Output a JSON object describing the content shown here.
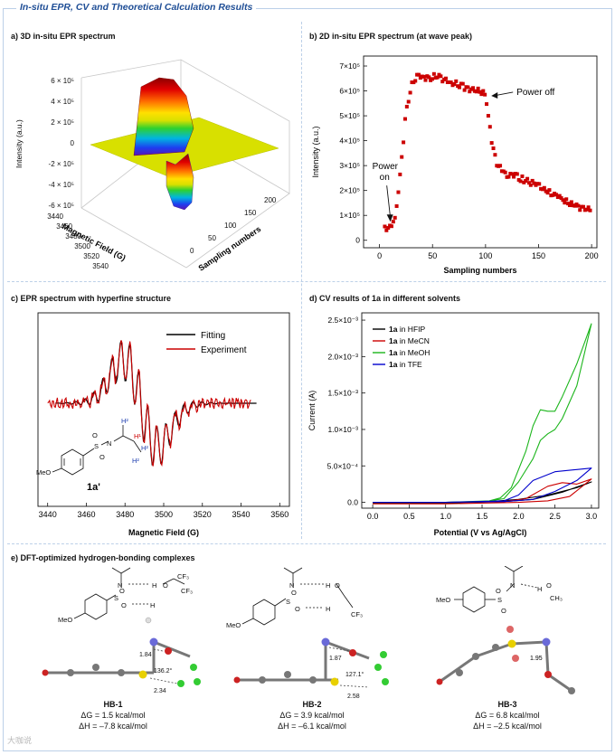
{
  "main_title": "In-situ EPR, CV and Theoretical Calculation Results",
  "panels": {
    "a": "a) 3D in-situ EPR spectrum",
    "b": "b) 2D in-situ EPR spectrum (at wave peak)",
    "c": "c) EPR spectrum with hyperfine structure",
    "d": "d) CV results of 1a in different solvents",
    "e": "e) DFT-optimized hydrogen-bonding complexes"
  },
  "colors": {
    "accent": "#1f4e96",
    "border": "#bcd0e8",
    "red": "#cc0000",
    "green": "#1bb51b",
    "blue": "#0000cc"
  },
  "chart_data": [
    {
      "id": "a",
      "type": "surface3d",
      "title": "3D in-situ EPR spectrum",
      "zlabel": "Intensity (a.u.)",
      "xlabel": "Magnetic Field (G)",
      "ylabel": "Sampling numbers",
      "z_ticks": [
        "6 × 10⁵",
        "4 × 10⁵",
        "2 × 10⁵",
        "0",
        "-2 × 10⁵",
        "-4 × 10⁵",
        "-6 × 10⁵"
      ],
      "field_ticks": [
        "3440",
        "3460",
        "3480",
        "3500",
        "3520",
        "3540"
      ],
      "sample_ticks": [
        "0",
        "50",
        "100",
        "150",
        "200"
      ]
    },
    {
      "id": "b",
      "type": "scatter",
      "title": "2D in-situ EPR spectrum (at wave peak)",
      "xlabel": "Sampling numbers",
      "ylabel": "Intensity (a.u.)",
      "xlim": [
        -15,
        205
      ],
      "ylim": [
        -30000,
        740000
      ],
      "x_ticks": [
        0,
        50,
        100,
        150,
        200
      ],
      "y_ticks": [
        {
          "v": 0,
          "label": "0"
        },
        {
          "v": 100000,
          "label": "1×10⁵"
        },
        {
          "v": 200000,
          "label": "2×10⁵"
        },
        {
          "v": 300000,
          "label": "3×10⁵"
        },
        {
          "v": 400000,
          "label": "4×10⁵"
        },
        {
          "v": 500000,
          "label": "5×10⁵"
        },
        {
          "v": 600000,
          "label": "6×10⁵"
        },
        {
          "v": 700000,
          "label": "7×10⁵"
        }
      ],
      "key_points": [
        [
          5,
          50000
        ],
        [
          10,
          52000
        ],
        [
          15,
          90000
        ],
        [
          20,
          280000
        ],
        [
          25,
          520000
        ],
        [
          30,
          620000
        ],
        [
          35,
          655000
        ],
        [
          45,
          650000
        ],
        [
          55,
          660000
        ],
        [
          65,
          635000
        ],
        [
          75,
          625000
        ],
        [
          85,
          605000
        ],
        [
          95,
          600000
        ],
        [
          100,
          580000
        ],
        [
          105,
          420000
        ],
        [
          110,
          310000
        ],
        [
          115,
          290000
        ],
        [
          120,
          260000
        ],
        [
          130,
          255000
        ],
        [
          140,
          235000
        ],
        [
          150,
          220000
        ],
        [
          160,
          195000
        ],
        [
          170,
          170000
        ],
        [
          180,
          150000
        ],
        [
          190,
          130000
        ],
        [
          200,
          120000
        ]
      ],
      "annotations": [
        {
          "text": "Power off",
          "x": 102,
          "y": 580000
        },
        {
          "line1": "Power",
          "line2": "on",
          "x": 12,
          "y": 60000
        }
      ]
    },
    {
      "id": "c",
      "type": "line",
      "title": "EPR spectrum with hyperfine structure",
      "xlabel": "Magnetic Field (G)",
      "xlim": [
        3435,
        3565
      ],
      "x_ticks": [
        3440,
        3460,
        3480,
        3500,
        3520,
        3540,
        3560
      ],
      "series": [
        {
          "name": "Fitting",
          "color": "#000000"
        },
        {
          "name": "Experiment",
          "color": "#cc0000"
        }
      ],
      "molecule_label": "1a'",
      "molecule_labels": [
        "MeO",
        "S",
        "O",
        "O",
        "N",
        "H¹",
        "H²",
        "H²",
        "H²"
      ]
    },
    {
      "id": "d",
      "type": "line",
      "title": "CV results of 1a in different solvents",
      "xlabel": "Potential (V vs Ag/AgCl)",
      "ylabel": "Current (A)",
      "xlim": [
        -0.15,
        3.1
      ],
      "ylim": [
        -8e-05,
        0.0026
      ],
      "x_ticks": [
        0.0,
        0.5,
        1.0,
        1.5,
        2.0,
        2.5,
        3.0
      ],
      "y_ticks": [
        {
          "v": 0,
          "label": "0.0"
        },
        {
          "v": 0.0005,
          "label": "5.0×10⁻⁴"
        },
        {
          "v": 0.001,
          "label": "1.0×10⁻³"
        },
        {
          "v": 0.0015,
          "label": "1.5×10⁻³"
        },
        {
          "v": 0.002,
          "label": "2.0×10⁻³"
        },
        {
          "v": 0.0025,
          "label": "2.5×10⁻³"
        }
      ],
      "series": [
        {
          "name_bold": "1a",
          "name_rest": " in HFIP",
          "color": "#000000",
          "forward": [
            [
              0,
              0
            ],
            [
              1.0,
              0
            ],
            [
              1.6,
              1e-05
            ],
            [
              2.0,
              4e-05
            ],
            [
              2.4,
              0.0001
            ],
            [
              2.8,
              0.0002
            ],
            [
              3.0,
              0.00028
            ]
          ],
          "reverse": [
            [
              3.0,
              0.00028
            ],
            [
              2.6,
              0.00014
            ],
            [
              2.2,
              4e-05
            ],
            [
              1.8,
              1e-05
            ],
            [
              1.0,
              -1e-05
            ],
            [
              0,
              -1e-05
            ]
          ]
        },
        {
          "name_bold": "1a",
          "name_rest": " in MeCN",
          "color": "#cc0000",
          "forward": [
            [
              0,
              0
            ],
            [
              1.0,
              0
            ],
            [
              1.8,
              1e-05
            ],
            [
              2.1,
              5e-05
            ],
            [
              2.4,
              0.00022
            ],
            [
              2.6,
              0.00027
            ],
            [
              2.8,
              0.00025
            ],
            [
              3.0,
              0.00032
            ]
          ],
          "reverse": [
            [
              3.0,
              0.00032
            ],
            [
              2.7,
              8e-05
            ],
            [
              2.4,
              2e-05
            ],
            [
              2.0,
              0
            ],
            [
              1.0,
              -2e-05
            ],
            [
              0,
              -2e-05
            ]
          ]
        },
        {
          "name_bold": "1a",
          "name_rest": " in MeOH",
          "color": "#1bb51b",
          "forward": [
            [
              0,
              0
            ],
            [
              1.0,
              0
            ],
            [
              1.6,
              2e-05
            ],
            [
              1.75,
              6e-05
            ],
            [
              1.9,
              0.0002
            ],
            [
              2.1,
              0.0007
            ],
            [
              2.2,
              0.00105
            ],
            [
              2.3,
              0.00127
            ],
            [
              2.4,
              0.00125
            ],
            [
              2.5,
              0.00125
            ],
            [
              2.6,
              0.00145
            ],
            [
              2.8,
              0.0019
            ],
            [
              3.0,
              0.00245
            ]
          ],
          "reverse": [
            [
              3.0,
              0.00245
            ],
            [
              2.8,
              0.0016
            ],
            [
              2.6,
              0.00115
            ],
            [
              2.5,
              0.001
            ],
            [
              2.4,
              0.00094
            ],
            [
              2.3,
              0.00085
            ],
            [
              2.2,
              0.0006
            ],
            [
              2.0,
              0.00028
            ],
            [
              1.8,
              5e-05
            ],
            [
              1.6,
              2e-05
            ],
            [
              1.0,
              0
            ],
            [
              0,
              0
            ]
          ]
        },
        {
          "name_bold": "1a",
          "name_rest": " in TFE",
          "color": "#0000cc",
          "forward": [
            [
              0,
              0
            ],
            [
              1.0,
              0
            ],
            [
              1.8,
              2e-05
            ],
            [
              2.0,
              0.0001
            ],
            [
              2.2,
              0.0003
            ],
            [
              2.5,
              0.00042
            ],
            [
              2.8,
              0.00045
            ],
            [
              3.0,
              0.00047
            ]
          ],
          "reverse": [
            [
              3.0,
              0.00047
            ],
            [
              2.8,
              0.0003
            ],
            [
              2.5,
              0.00015
            ],
            [
              2.2,
              4e-05
            ],
            [
              1.8,
              1e-05
            ],
            [
              1.0,
              0
            ],
            [
              0,
              0
            ]
          ]
        }
      ]
    }
  ],
  "complexes": [
    {
      "id": "HB-1",
      "dG": "ΔG = 1.5 kcal/mol",
      "dH": "ΔH = –7.8 kcal/mol",
      "dists": [
        "1.84",
        "136.2°",
        "2.34"
      ],
      "atoms": [
        "N",
        "H",
        "O",
        "CF₃",
        "CF₃",
        "S",
        "O",
        "O",
        "H",
        "MeO"
      ]
    },
    {
      "id": "HB-2",
      "dG": "ΔG = 3.9 kcal/mol",
      "dH": "ΔH = –6.1 kcal/mol",
      "dists": [
        "1.87",
        "127.1°",
        "2.58"
      ],
      "atoms": [
        "N",
        "H",
        "O",
        "S",
        "O",
        "O",
        "H",
        "CF₃",
        "MeO"
      ]
    },
    {
      "id": "HB-3",
      "dG": "ΔG = 6.8 kcal/mol",
      "dH": "ΔH = –2.5 kcal/mol",
      "dists": [
        "1.95"
      ],
      "atoms": [
        "N",
        "H",
        "O",
        "CH₃",
        "S",
        "O",
        "O",
        "MeO"
      ]
    }
  ],
  "watermark": "大咖说"
}
